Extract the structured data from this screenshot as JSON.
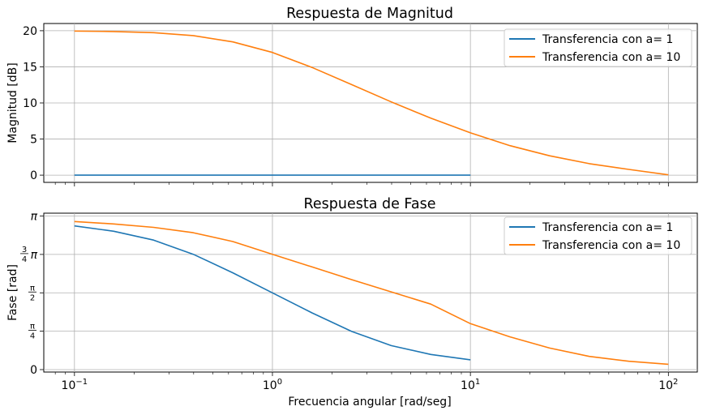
{
  "chart_data": [
    {
      "type": "line",
      "title": "Respuesta de Magnitud",
      "xlabel": "",
      "ylabel": "Magnitud [dB]",
      "xscale": "log",
      "xlim": [
        0.07,
        140
      ],
      "ylim": [
        -1,
        21
      ],
      "grid": true,
      "legend": "top-right",
      "yticks": [
        0,
        5,
        10,
        15,
        20
      ],
      "ytick_labels": [
        "0",
        "5",
        "10",
        "15",
        "20"
      ],
      "series": [
        {
          "name": "Transferencia con a= 1",
          "color": "#1f77b4",
          "x": [
            0.1,
            0.2,
            0.5,
            1,
            2,
            5,
            10
          ],
          "y": [
            0,
            0,
            0,
            0,
            0,
            0,
            0
          ]
        },
        {
          "name": "Transferencia con a= 10",
          "color": "#ff7f0e",
          "x": [
            0.1,
            0.158,
            0.251,
            0.398,
            0.631,
            1,
            1.585,
            2.512,
            3.981,
            6.31,
            10,
            15.85,
            25.12,
            39.81,
            63.1,
            100
          ],
          "y": [
            19.96,
            19.89,
            19.73,
            19.33,
            18.45,
            16.99,
            14.92,
            12.54,
            10.15,
            7.89,
            5.86,
            4.08,
            2.68,
            1.59,
            0.8,
            0.04
          ]
        }
      ]
    },
    {
      "type": "line",
      "title": "Respuesta de Fase",
      "xlabel": "Frecuencia angular [rad/seg]",
      "ylabel": "Fase [rad]",
      "xscale": "log",
      "xlim": [
        0.07,
        140
      ],
      "ylim": [
        -0.05,
        3.2
      ],
      "grid": true,
      "legend": "top-right",
      "yticks": [
        0,
        0.7854,
        1.5708,
        2.3562,
        3.1416
      ],
      "ytick_labels": [
        "0",
        "π/4",
        "π/2",
        "3/4 π",
        "π"
      ],
      "xticks": [
        0.1,
        1,
        10,
        100
      ],
      "xtick_labels": [
        "10^−1",
        "10^0",
        "10^1",
        "10^2"
      ],
      "series": [
        {
          "name": "Transferencia con a= 1",
          "color": "#1f77b4",
          "x": [
            0.1,
            0.158,
            0.251,
            0.398,
            0.631,
            1,
            1.585,
            2.512,
            3.981,
            6.31,
            10
          ],
          "y": [
            2.94,
            2.83,
            2.65,
            2.36,
            1.98,
            1.57,
            1.16,
            0.78,
            0.49,
            0.31,
            0.2
          ]
        },
        {
          "name": "Transferencia con a= 10",
          "color": "#ff7f0e",
          "x": [
            0.1,
            0.158,
            0.251,
            0.398,
            0.631,
            1,
            1.585,
            2.512,
            3.981,
            6.31,
            10,
            15.85,
            25.12,
            39.81,
            63.1,
            100
          ],
          "y": [
            3.03,
            2.98,
            2.91,
            2.8,
            2.62,
            2.36,
            2.1,
            1.84,
            1.59,
            1.34,
            0.94,
            0.67,
            0.44,
            0.27,
            0.17,
            0.11
          ]
        }
      ]
    }
  ]
}
